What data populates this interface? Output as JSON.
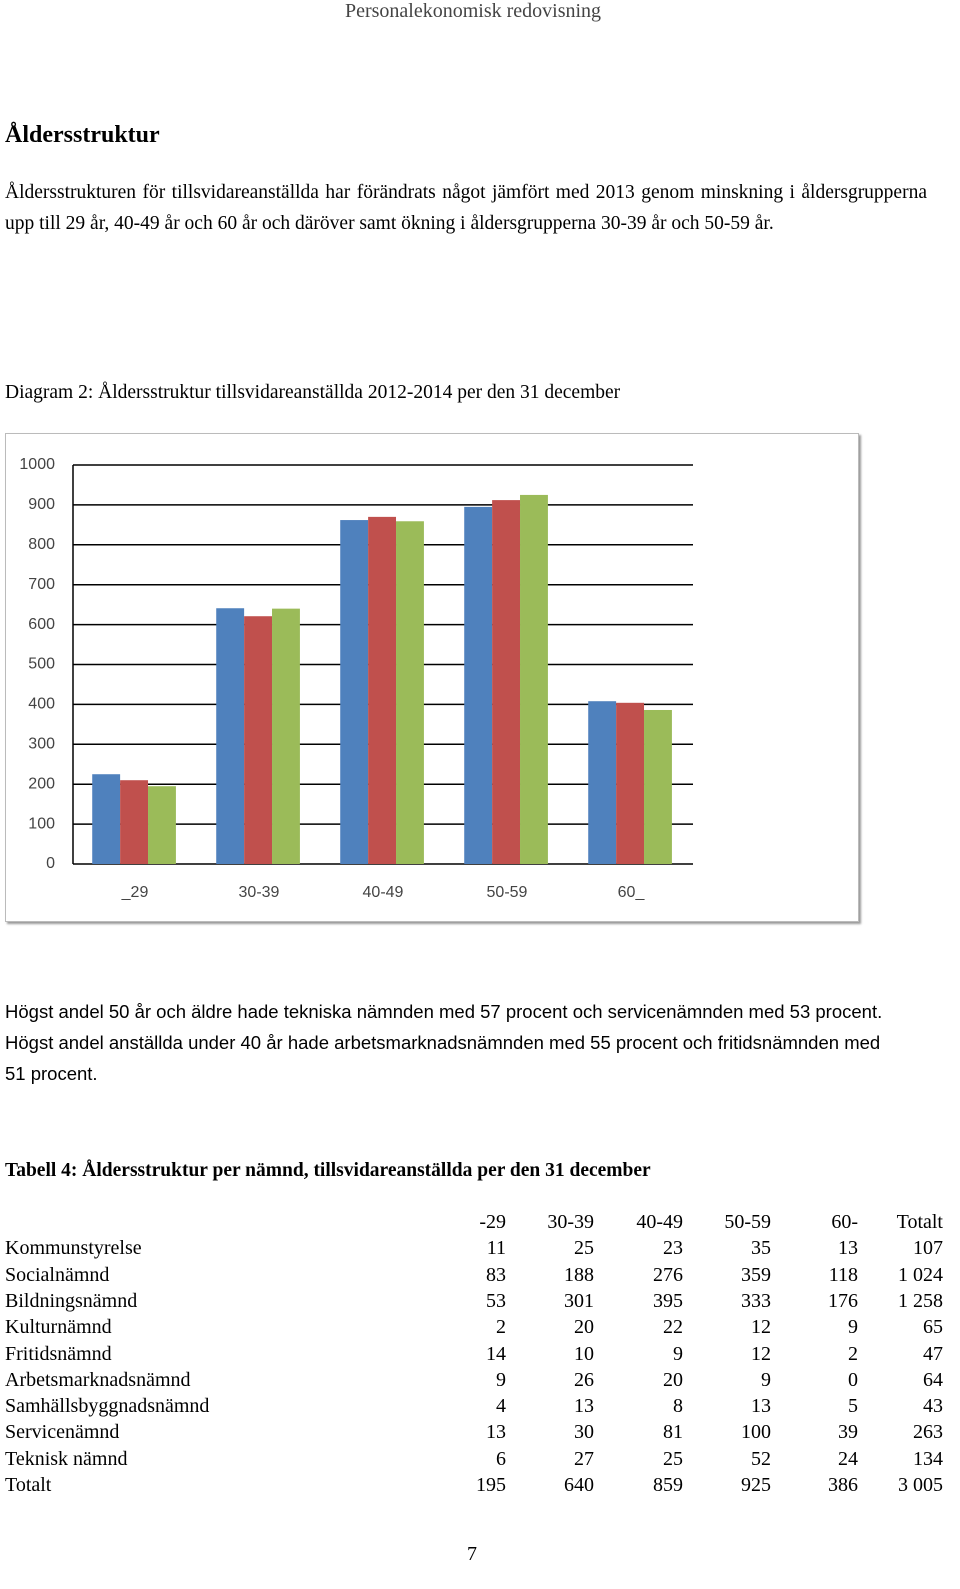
{
  "header": "Personalekonomisk redovisning",
  "heading": "Åldersstruktur",
  "paragraphs": [
    "Åldersstrukturen för tillsvidareanställda har förändrats något jämfört med 2013 genom minskning i åldersgrupperna upp till 29 år, 40-49 år och 60 år och däröver samt ökning i åldersgrupperna 30-39 år och 50-59 år.",
    "Högst andel 50 år och äldre hade tekniska nämnden med 57 procent och servicenämnden med 53 procent. Högst andel anställda under 40 år hade arbetsmarknadsnämnden med 55 procent och fritidsnämnden med 51 procent."
  ],
  "chart_data": {
    "type": "bar",
    "title": "Diagram 2: Åldersstruktur tillsvidareanställda 2012-2014 per den 31 december",
    "categories": [
      "_29",
      "30-39",
      "40-49",
      "50-59",
      "60_"
    ],
    "series": [
      {
        "color": "#4f81bd",
        "values": [
          225,
          641,
          862,
          895,
          408
        ]
      },
      {
        "color": "#c0504d",
        "values": [
          210,
          621,
          870,
          912,
          404
        ]
      },
      {
        "color": "#9bbb59",
        "values": [
          195,
          640,
          859,
          925,
          386
        ]
      }
    ],
    "ylim": [
      0,
      1000
    ],
    "yticks": [
      0,
      100,
      200,
      300,
      400,
      500,
      600,
      700,
      800,
      900,
      1000
    ],
    "grid": true
  },
  "table": {
    "caption": "Tabell 4: Åldersstruktur per nämnd, tillsvidareanställda per den 31 december",
    "columns": [
      "-29",
      "30-39",
      "40-49",
      "50-59",
      "60-",
      "Totalt"
    ],
    "rows": [
      {
        "label": "Kommunstyrelse",
        "cells": [
          "11",
          "25",
          "23",
          "35",
          "13",
          "107"
        ]
      },
      {
        "label": "Socialnämnd",
        "cells": [
          "83",
          "188",
          "276",
          "359",
          "118",
          "1 024"
        ]
      },
      {
        "label": "Bildningsnämnd",
        "cells": [
          "53",
          "301",
          "395",
          "333",
          "176",
          "1 258"
        ]
      },
      {
        "label": "Kulturnämnd",
        "cells": [
          "2",
          "20",
          "22",
          "12",
          "9",
          "65"
        ]
      },
      {
        "label": "Fritidsnämnd",
        "cells": [
          "14",
          "10",
          "9",
          "12",
          "2",
          "47"
        ]
      },
      {
        "label": "Arbetsmarknadsnämnd",
        "cells": [
          "9",
          "26",
          "20",
          "9",
          "0",
          "64"
        ]
      },
      {
        "label": "Samhällsbyggnadsnämnd",
        "cells": [
          "4",
          "13",
          "8",
          "13",
          "5",
          "43"
        ]
      },
      {
        "label": "Servicenämnd",
        "cells": [
          "13",
          "30",
          "81",
          "100",
          "39",
          "263"
        ]
      },
      {
        "label": "Teknisk nämnd",
        "cells": [
          "6",
          "27",
          "25",
          "52",
          "24",
          "134"
        ]
      },
      {
        "label": "Totalt",
        "cells": [
          "195",
          "640",
          "859",
          "925",
          "386",
          "3 005"
        ]
      }
    ]
  },
  "page_number": "7"
}
